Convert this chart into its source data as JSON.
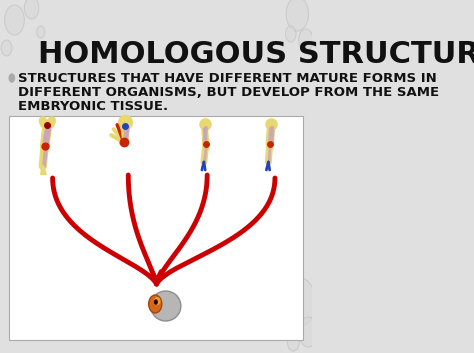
{
  "title": "HOMOLOGOUS STRUCTURES",
  "subtitle_lines": [
    "STRUCTURES THAT HAVE DIFFERENT MATURE FORMS IN",
    "DIFFERENT ORGANISMS, BUT DEVELOP FROM THE SAME",
    "EMBRYONIC TISSUE."
  ],
  "slide_bg": "#e0e0e0",
  "box_bg": "#ffffff",
  "title_color": "#111111",
  "subtitle_color": "#111111",
  "title_fontsize": 22,
  "subtitle_fontsize": 9.5,
  "red_color": "#cc0000",
  "bubble_color": "#d8d8d8",
  "figsize": [
    4.74,
    3.53
  ],
  "dpi": 100
}
